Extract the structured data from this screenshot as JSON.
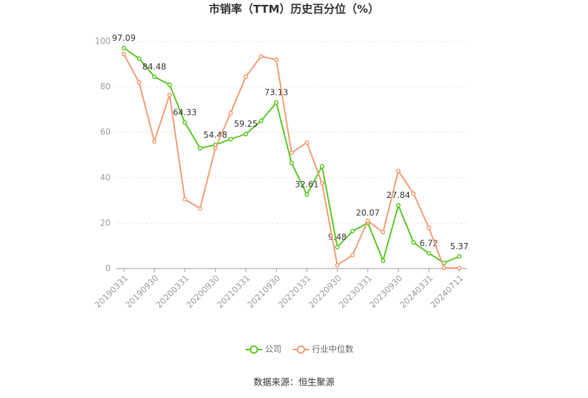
{
  "chart_data": {
    "type": "line",
    "title": "市销率（TTM）历史百分位（%）",
    "categories": [
      "20190331",
      null,
      "20190930",
      null,
      "20200331",
      null,
      "20200930",
      null,
      "20210331",
      null,
      "20210930",
      null,
      "20220331",
      null,
      "20220930",
      null,
      "20230331",
      null,
      "20230930",
      null,
      "20240331",
      null,
      "20240711"
    ],
    "series": [
      {
        "name": "公司",
        "color": "#52c41a",
        "values": [
          97.09,
          92.5,
          84.48,
          81,
          64.33,
          53,
          54.48,
          57,
          59.25,
          65,
          73.13,
          46.5,
          32.61,
          45,
          9.48,
          16.5,
          20.07,
          3.5,
          27.84,
          11.5,
          6.72,
          2.5,
          5.37
        ]
      },
      {
        "name": "行业中位数",
        "color": "#f4976c",
        "values": [
          94.5,
          82,
          56,
          76.5,
          30.5,
          26.5,
          53,
          68.5,
          84.5,
          93.5,
          92,
          51,
          55.5,
          37.5,
          1.5,
          6,
          21,
          16,
          43,
          33,
          18,
          0.3,
          0.2
        ]
      }
    ],
    "ylim": [
      0,
      100
    ],
    "yticks": [
      0,
      20,
      40,
      60,
      80,
      100
    ],
    "grid": true,
    "legend": "bottom",
    "source": "数据来源：恒生聚源"
  }
}
